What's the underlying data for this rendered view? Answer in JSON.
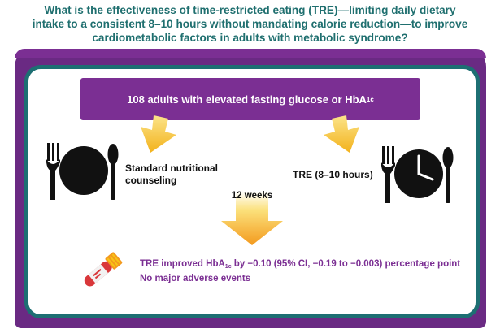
{
  "question": {
    "line1": "What is the effectiveness of time-restricted eating (TRE)—limiting daily dietary",
    "line2": "intake to a consistent 8–10 hours without mandating calorie reduction—to improve",
    "line3": "cardiometabolic factors in adults with metabolic syndrome?"
  },
  "population": {
    "text": "108 adults with elevated fasting glucose or HbA",
    "subscript": "1c"
  },
  "arms": {
    "control_line1": "Standard nutritional",
    "control_line2": "counseling",
    "intervention": "TRE (8–10 hours)"
  },
  "duration": "12 weeks",
  "outcome": {
    "line1_prefix": "TRE improved HbA",
    "line1_sub": "1c",
    "line1_suffix": " by −0.10 (95% CI, −0.19 to −0.003) percentage point",
    "line2": "No major adverse events"
  },
  "colors": {
    "teal": "#1d6f73",
    "purple": "#7b2f93",
    "arrow_yellow": "#f7c516",
    "arrow_orange": "#f39a1e",
    "tube_red": "#d9373a"
  },
  "icons": [
    "plate-fork-spoon-icon",
    "clock-plate-icon",
    "down-arrow-icon",
    "blood-tube-icon"
  ]
}
